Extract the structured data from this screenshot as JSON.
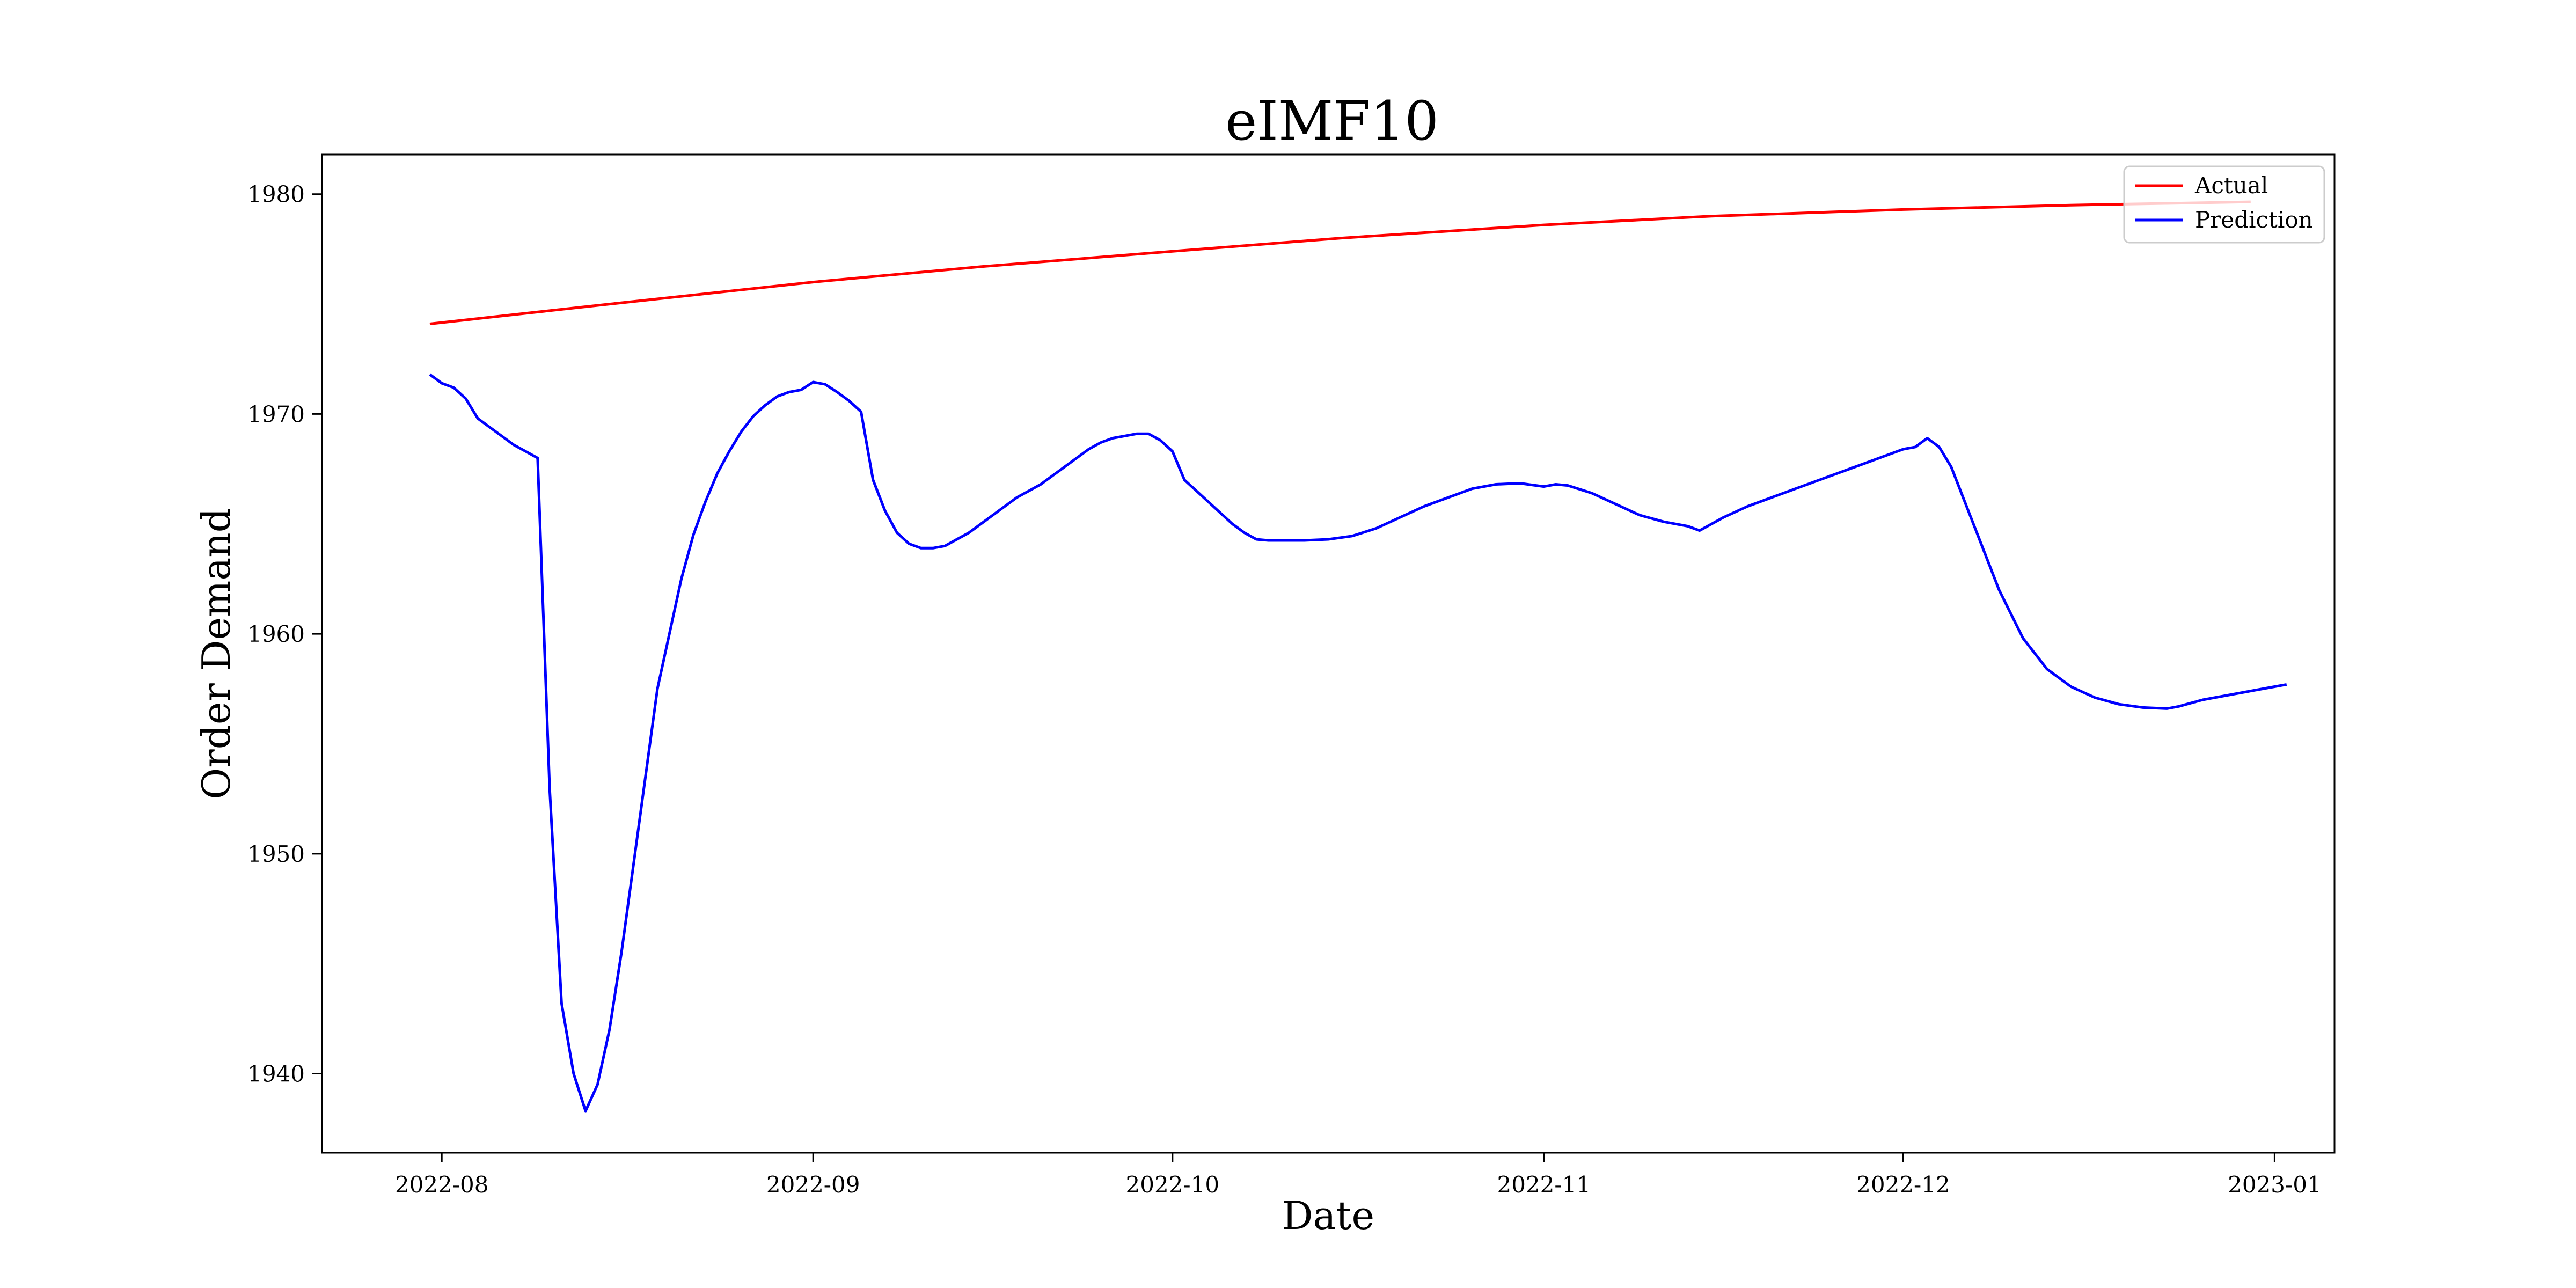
{
  "chart_data": {
    "type": "line",
    "title": "eIMF10",
    "xlabel": "Date",
    "ylabel": "Order Demand",
    "x_ticks": [
      "2022-08",
      "2022-09",
      "2022-10",
      "2022-11",
      "2022-12",
      "2023-01"
    ],
    "y_ticks": [
      1940,
      1950,
      1960,
      1970,
      1980
    ],
    "xlim": [
      "2022-07-22",
      "2023-01-06"
    ],
    "ylim": [
      1936.4,
      1981.8
    ],
    "grid": false,
    "legend": "top-right",
    "series": [
      {
        "name": "Actual",
        "color": "#ff0000",
        "points": [
          [
            "2022-07-31",
            1974.1
          ],
          [
            "2022-08-15",
            1975.0
          ],
          [
            "2022-09-01",
            1976.0
          ],
          [
            "2022-09-15",
            1976.7
          ],
          [
            "2022-10-01",
            1977.4
          ],
          [
            "2022-10-15",
            1978.0
          ],
          [
            "2022-11-01",
            1978.6
          ],
          [
            "2022-11-15",
            1979.0
          ],
          [
            "2022-12-01",
            1979.3
          ],
          [
            "2022-12-15",
            1979.5
          ],
          [
            "2022-12-30",
            1979.65
          ]
        ]
      },
      {
        "name": "Prediction",
        "color": "#0000ff",
        "points": [
          [
            "2022-07-31",
            1971.8
          ],
          [
            "2022-08-01",
            1971.4
          ],
          [
            "2022-08-02",
            1971.2
          ],
          [
            "2022-08-03",
            1970.7
          ],
          [
            "2022-08-04",
            1969.8
          ],
          [
            "2022-08-05",
            1969.4
          ],
          [
            "2022-08-06",
            1969.0
          ],
          [
            "2022-08-07",
            1968.6
          ],
          [
            "2022-08-08",
            1968.3
          ],
          [
            "2022-08-09",
            1968.0
          ],
          [
            "2022-08-10",
            1953.0
          ],
          [
            "2022-08-11",
            1943.2
          ],
          [
            "2022-08-12",
            1940.0
          ],
          [
            "2022-08-13",
            1938.3
          ],
          [
            "2022-08-14",
            1939.5
          ],
          [
            "2022-08-15",
            1942.0
          ],
          [
            "2022-08-16",
            1945.5
          ],
          [
            "2022-08-17",
            1949.5
          ],
          [
            "2022-08-18",
            1953.5
          ],
          [
            "2022-08-19",
            1957.5
          ],
          [
            "2022-08-20",
            1960.0
          ],
          [
            "2022-08-21",
            1962.5
          ],
          [
            "2022-08-22",
            1964.5
          ],
          [
            "2022-08-23",
            1966.0
          ],
          [
            "2022-08-24",
            1967.3
          ],
          [
            "2022-08-25",
            1968.3
          ],
          [
            "2022-08-26",
            1969.2
          ],
          [
            "2022-08-27",
            1969.9
          ],
          [
            "2022-08-28",
            1970.4
          ],
          [
            "2022-08-29",
            1970.8
          ],
          [
            "2022-08-30",
            1971.0
          ],
          [
            "2022-08-31",
            1971.1
          ],
          [
            "2022-09-01",
            1971.45
          ],
          [
            "2022-09-02",
            1971.35
          ],
          [
            "2022-09-03",
            1971.0
          ],
          [
            "2022-09-04",
            1970.6
          ],
          [
            "2022-09-05",
            1970.1
          ],
          [
            "2022-09-06",
            1967.0
          ],
          [
            "2022-09-07",
            1965.6
          ],
          [
            "2022-09-08",
            1964.6
          ],
          [
            "2022-09-09",
            1964.1
          ],
          [
            "2022-09-10",
            1963.9
          ],
          [
            "2022-09-11",
            1963.9
          ],
          [
            "2022-09-12",
            1964.0
          ],
          [
            "2022-09-13",
            1964.3
          ],
          [
            "2022-09-14",
            1964.6
          ],
          [
            "2022-09-15",
            1965.0
          ],
          [
            "2022-09-16",
            1965.4
          ],
          [
            "2022-09-17",
            1965.8
          ],
          [
            "2022-09-18",
            1966.2
          ],
          [
            "2022-09-19",
            1966.5
          ],
          [
            "2022-09-20",
            1966.8
          ],
          [
            "2022-09-21",
            1967.2
          ],
          [
            "2022-09-22",
            1967.6
          ],
          [
            "2022-09-23",
            1968.0
          ],
          [
            "2022-09-24",
            1968.4
          ],
          [
            "2022-09-25",
            1968.7
          ],
          [
            "2022-09-26",
            1968.9
          ],
          [
            "2022-09-27",
            1969.0
          ],
          [
            "2022-09-28",
            1969.1
          ],
          [
            "2022-09-29",
            1969.1
          ],
          [
            "2022-09-30",
            1968.8
          ],
          [
            "2022-10-01",
            1968.3
          ],
          [
            "2022-10-02",
            1967.0
          ],
          [
            "2022-10-03",
            1966.5
          ],
          [
            "2022-10-04",
            1966.0
          ],
          [
            "2022-10-05",
            1965.5
          ],
          [
            "2022-10-06",
            1965.0
          ],
          [
            "2022-10-07",
            1964.6
          ],
          [
            "2022-10-08",
            1964.3
          ],
          [
            "2022-10-09",
            1964.25
          ],
          [
            "2022-10-10",
            1964.25
          ],
          [
            "2022-10-12",
            1964.25
          ],
          [
            "2022-10-14",
            1964.3
          ],
          [
            "2022-10-16",
            1964.45
          ],
          [
            "2022-10-18",
            1964.8
          ],
          [
            "2022-10-20",
            1965.3
          ],
          [
            "2022-10-22",
            1965.8
          ],
          [
            "2022-10-24",
            1966.2
          ],
          [
            "2022-10-26",
            1966.6
          ],
          [
            "2022-10-28",
            1966.8
          ],
          [
            "2022-10-30",
            1966.85
          ],
          [
            "2022-11-01",
            1966.7
          ],
          [
            "2022-11-02",
            1966.8
          ],
          [
            "2022-11-03",
            1966.75
          ],
          [
            "2022-11-05",
            1966.4
          ],
          [
            "2022-11-07",
            1965.9
          ],
          [
            "2022-11-09",
            1965.4
          ],
          [
            "2022-11-11",
            1965.1
          ],
          [
            "2022-11-13",
            1964.9
          ],
          [
            "2022-11-14",
            1964.7
          ],
          [
            "2022-11-16",
            1965.3
          ],
          [
            "2022-11-18",
            1965.8
          ],
          [
            "2022-11-20",
            1966.2
          ],
          [
            "2022-11-22",
            1966.6
          ],
          [
            "2022-11-24",
            1967.0
          ],
          [
            "2022-11-26",
            1967.4
          ],
          [
            "2022-11-28",
            1967.8
          ],
          [
            "2022-11-30",
            1968.2
          ],
          [
            "2022-12-01",
            1968.4
          ],
          [
            "2022-12-02",
            1968.5
          ],
          [
            "2022-12-03",
            1968.9
          ],
          [
            "2022-12-04",
            1968.5
          ],
          [
            "2022-12-05",
            1967.6
          ],
          [
            "2022-12-07",
            1964.8
          ],
          [
            "2022-12-09",
            1962.0
          ],
          [
            "2022-12-11",
            1959.8
          ],
          [
            "2022-12-13",
            1958.4
          ],
          [
            "2022-12-15",
            1957.6
          ],
          [
            "2022-12-17",
            1957.1
          ],
          [
            "2022-12-19",
            1956.8
          ],
          [
            "2022-12-21",
            1956.65
          ],
          [
            "2022-12-23",
            1956.6
          ],
          [
            "2022-12-24",
            1956.7
          ],
          [
            "2022-12-26",
            1957.0
          ],
          [
            "2022-12-28",
            1957.2
          ],
          [
            "2022-12-30",
            1957.4
          ],
          [
            "2023-01-01",
            1957.6
          ],
          [
            "2023-01-02",
            1957.7
          ]
        ]
      }
    ]
  }
}
